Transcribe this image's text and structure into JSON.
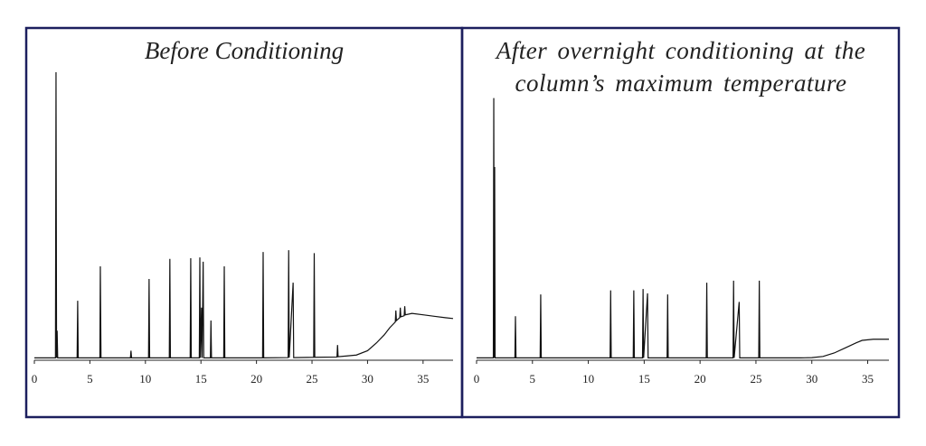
{
  "chart_data": [
    {
      "type": "line",
      "title": "Before Conditioning",
      "color": "#111111",
      "xlim": [
        0,
        37.7
      ],
      "ylim": [
        0,
        100
      ],
      "xticks": [
        0,
        5,
        10,
        15,
        20,
        25,
        30,
        35
      ],
      "x": [
        0,
        1.9,
        1.95,
        2.0,
        2.05,
        2.1,
        3.85,
        3.9,
        3.95,
        5.9,
        5.94,
        6.0,
        8.65,
        8.7,
        8.75,
        10.28,
        10.33,
        10.38,
        12.15,
        12.2,
        12.25,
        14.03,
        14.08,
        14.13,
        14.85,
        14.9,
        14.95,
        15.05,
        15.1,
        15.2,
        15.25,
        15.85,
        15.9,
        15.95,
        17.05,
        17.1,
        17.15,
        20.55,
        20.6,
        20.65,
        22.85,
        22.9,
        22.95,
        23.3,
        23.35,
        25.15,
        25.2,
        25.25,
        27.25,
        27.3,
        27.35,
        29,
        30,
        30.8,
        31.5,
        32,
        32.5,
        32.55,
        32.6,
        32.9,
        32.95,
        33.0,
        33.3,
        33.35,
        33.4,
        34,
        35,
        36,
        37,
        37.7
      ],
      "values": [
        0.5,
        0.5,
        100,
        0.5,
        10,
        0.5,
        0.5,
        20.4,
        0.5,
        0.5,
        32.4,
        0.5,
        0.5,
        3,
        0.5,
        0.5,
        28,
        0.5,
        0.5,
        35,
        0.5,
        0.5,
        35.2,
        0.5,
        0.5,
        35.5,
        0.5,
        18,
        0.5,
        34,
        0.5,
        0.5,
        13.5,
        0.5,
        0.5,
        32.4,
        0.5,
        0.5,
        37.4,
        0.5,
        0.6,
        38,
        0.6,
        26.7,
        0.6,
        0.7,
        37,
        0.7,
        0.8,
        5,
        0.9,
        1.5,
        3,
        5.7,
        8.5,
        11,
        13,
        17,
        13.5,
        14.5,
        18,
        14.8,
        15.2,
        18.5,
        15.5,
        16,
        15.5,
        15,
        14.5,
        14.2
      ]
    },
    {
      "type": "line",
      "title": "After overnight conditioning at the column’s maximum temperature",
      "color": "#111111",
      "xlim": [
        0,
        36.9
      ],
      "ylim": [
        0,
        100
      ],
      "xticks": [
        0,
        5,
        10,
        15,
        20,
        25,
        30,
        35
      ],
      "x": [
        0,
        1.5,
        1.54,
        1.58,
        1.62,
        1.66,
        3.43,
        3.48,
        3.53,
        5.69,
        5.74,
        5.79,
        11.95,
        12.0,
        12.05,
        14.02,
        14.07,
        14.12,
        14.85,
        14.9,
        14.95,
        15.3,
        15.35,
        17.05,
        17.1,
        17.15,
        20.55,
        20.6,
        20.65,
        22.95,
        23.0,
        23.05,
        23.5,
        23.55,
        25.25,
        25.3,
        25.35,
        29,
        30,
        31,
        32,
        33,
        34,
        34.5,
        35.5,
        36.9
      ],
      "values": [
        0.5,
        0.5,
        91,
        0.5,
        67,
        0.5,
        0.5,
        15,
        0.5,
        0.5,
        22.6,
        0.5,
        0.5,
        24,
        0.5,
        0.5,
        24,
        0.5,
        0.5,
        24.5,
        0.5,
        23,
        0.5,
        0.5,
        22.6,
        0.5,
        0.5,
        26.7,
        0.5,
        0.5,
        27.4,
        0.5,
        20,
        0.5,
        0.5,
        27.4,
        0.5,
        0.5,
        0.6,
        1,
        2.2,
        4,
        5.8,
        6.6,
        7,
        7
      ]
    }
  ]
}
